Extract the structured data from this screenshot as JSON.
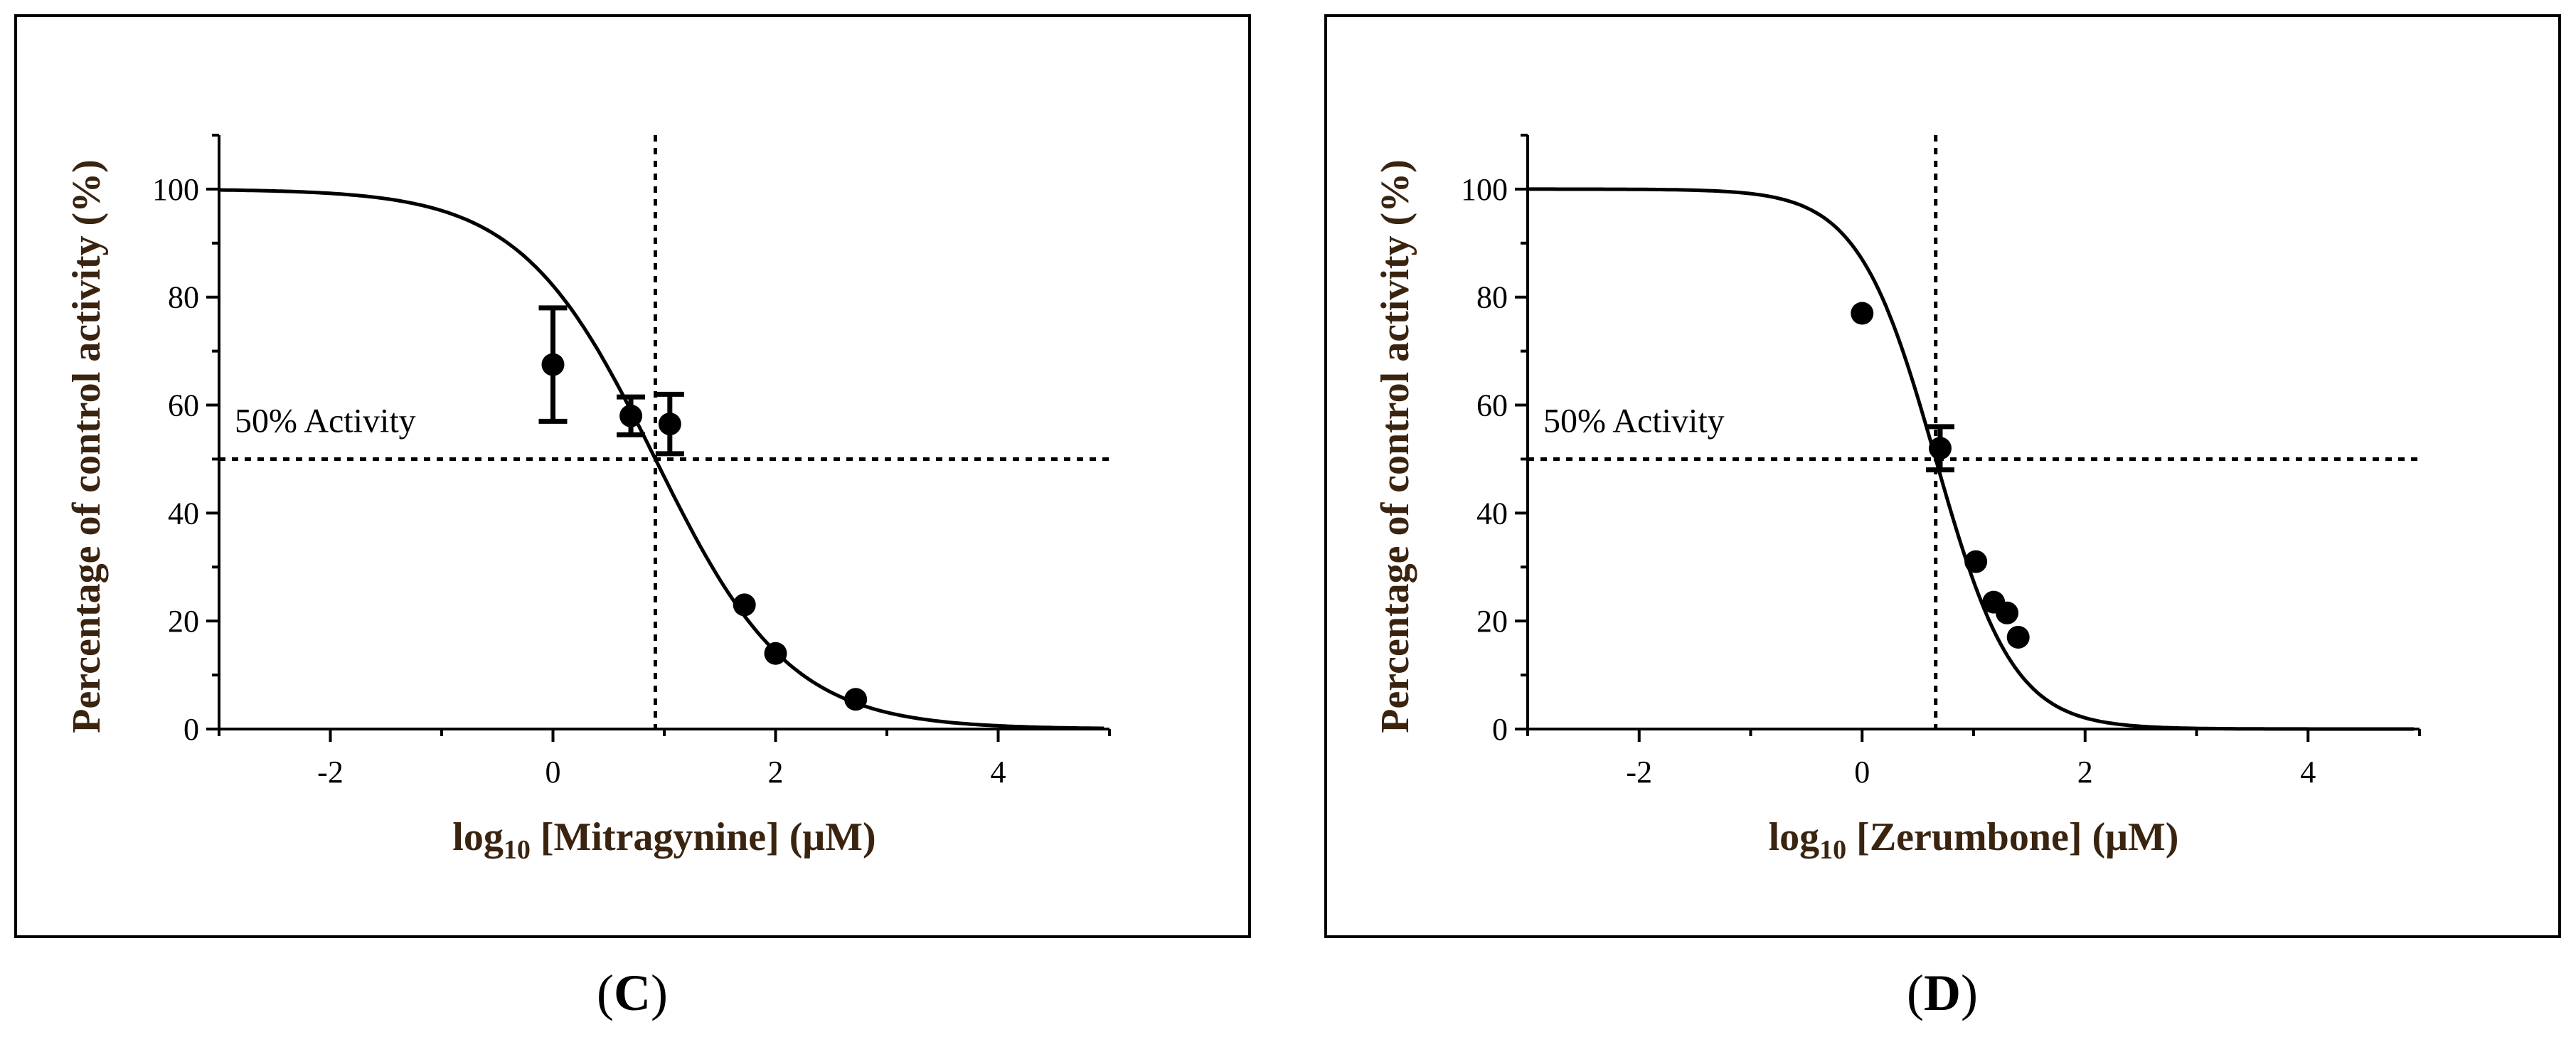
{
  "chart_data": [
    {
      "type": "scatter",
      "panel_label": "C",
      "xlabel": {
        "prefix": "log",
        "subscript": "10",
        "suffix": " [Mitragynine] (μM)"
      },
      "ylabel": "Percentage of control activity (%)",
      "xlim": [
        -3,
        5
      ],
      "ylim": [
        0,
        110
      ],
      "xticks": [
        -2,
        0,
        2,
        4
      ],
      "yticks": [
        0,
        20,
        40,
        60,
        80,
        100
      ],
      "xtick_labels": [
        "-2",
        "0",
        "2",
        "4"
      ],
      "ytick_labels": [
        "0",
        "20",
        "40",
        "60",
        "80",
        "100"
      ],
      "reference_lines": {
        "y": 50,
        "x": 0.92,
        "y_label": "50% Activity"
      },
      "fit_curve": {
        "top": 100,
        "bottom": 0,
        "log_ic50": 0.92,
        "hill_slope": -0.72
      },
      "points": [
        {
          "x": 0.0,
          "y": 67.5,
          "err": 10.5
        },
        {
          "x": 0.7,
          "y": 58.0,
          "err": 3.5
        },
        {
          "x": 1.05,
          "y": 56.5,
          "err": 5.5
        },
        {
          "x": 1.72,
          "y": 23.0,
          "err": 0
        },
        {
          "x": 2.0,
          "y": 14.0,
          "err": 0
        },
        {
          "x": 2.72,
          "y": 5.5,
          "err": 0
        }
      ]
    },
    {
      "type": "scatter",
      "panel_label": "D",
      "xlabel": {
        "prefix": "log",
        "subscript": "10",
        "suffix": " [Zerumbone] (μM)"
      },
      "ylabel": "Percentage of control activity (%)",
      "xlim": [
        -3,
        5
      ],
      "ylim": [
        0,
        110
      ],
      "xticks": [
        -2,
        0,
        2,
        4
      ],
      "yticks": [
        0,
        20,
        40,
        60,
        80,
        100
      ],
      "xtick_labels": [
        "-2",
        "0",
        "2",
        "4"
      ],
      "ytick_labels": [
        "0",
        "20",
        "40",
        "60",
        "80",
        "100"
      ],
      "reference_lines": {
        "y": 50,
        "x": 0.66,
        "y_label": "50% Activity"
      },
      "fit_curve": {
        "top": 100,
        "bottom": 0,
        "log_ic50": 0.66,
        "hill_slope": -1.25
      },
      "points": [
        {
          "x": 0.0,
          "y": 77.0,
          "err": 0
        },
        {
          "x": 0.7,
          "y": 52.0,
          "err": 4.0
        },
        {
          "x": 1.02,
          "y": 31.0,
          "err": 0
        },
        {
          "x": 1.18,
          "y": 23.5,
          "err": 0
        },
        {
          "x": 1.3,
          "y": 21.5,
          "err": 0
        },
        {
          "x": 1.4,
          "y": 17.0,
          "err": 0
        }
      ]
    }
  ]
}
